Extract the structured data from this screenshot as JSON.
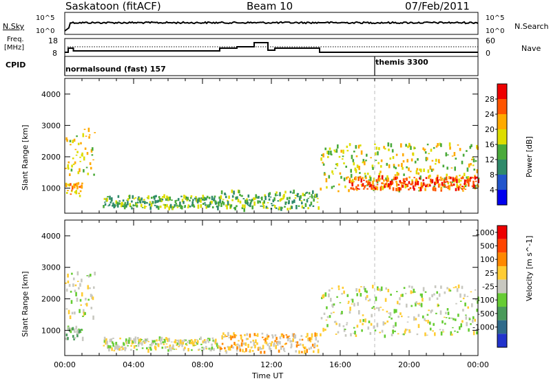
{
  "header": {
    "site": "Saskatoon (fitACF)",
    "beam": "Beam 10",
    "date": "07/Feb/2011"
  },
  "noise_panel": {
    "left_label": "N.Sky",
    "right_label": "N.Search",
    "left_ticks": [
      "10^5",
      "10^0"
    ],
    "right_ticks": [
      "10^5",
      "10^0"
    ]
  },
  "freq_panel": {
    "left_label_1": "Freq.",
    "left_label_2": "[MHz]",
    "right_label": "Nave",
    "left_ticks": [
      "18",
      "8"
    ],
    "right_ticks": [
      "60",
      "0"
    ]
  },
  "cpid_panel": {
    "label": "CPID",
    "modes": [
      {
        "name": "normalsound (fast) 157",
        "start_hour": 0
      },
      {
        "name": "themis 3300",
        "start_hour": 18
      }
    ]
  },
  "chart_data": [
    {
      "type": "heatmap",
      "quantity": "Power",
      "ylabel": "Slant Range [km]",
      "xlabel": "Time UT",
      "ylim": [
        200,
        4500
      ],
      "xlim_hours": [
        0,
        24
      ],
      "yticks": [
        "1000",
        "2000",
        "3000",
        "4000"
      ],
      "colorbar_label": "Power [dB]",
      "colorbar_ticks": [
        "4",
        "8",
        "12",
        "16",
        "20",
        "24",
        "28"
      ],
      "colors": [
        "#0000ee",
        "#2255cc",
        "#2f8a6a",
        "#4aaa3a",
        "#dddd00",
        "#ffaa00",
        "#ff5500",
        "#ee0000"
      ],
      "regions": [
        {
          "t0": 0.0,
          "t1": 1.7,
          "r0": 1400,
          "r1": 2900,
          "level": 4
        },
        {
          "t0": 0.0,
          "t1": 1.0,
          "r0": 750,
          "r1": 1150,
          "level": 5
        },
        {
          "t0": 2.2,
          "t1": 9.0,
          "r0": 350,
          "r1": 750,
          "level": 3
        },
        {
          "t0": 9.0,
          "t1": 14.7,
          "r0": 300,
          "r1": 900,
          "level": 3
        },
        {
          "t0": 14.8,
          "t1": 24.0,
          "r0": 900,
          "r1": 2400,
          "level": 4
        },
        {
          "t0": 16.5,
          "t1": 24.0,
          "r0": 950,
          "r1": 1350,
          "level": 6
        }
      ]
    },
    {
      "type": "heatmap",
      "quantity": "Velocity",
      "ylabel": "Slant Range [km]",
      "xlabel": "Time UT",
      "ylim": [
        200,
        4500
      ],
      "xlim_hours": [
        0,
        24
      ],
      "yticks": [
        "1000",
        "2000",
        "3000",
        "4000"
      ],
      "colorbar_label": "Velocity [m s^-1]",
      "colorbar_ticks": [
        "1000",
        "500",
        "100",
        "25",
        "-25",
        "-100",
        "-500",
        "-1000"
      ],
      "colors": [
        "#2233cc",
        "#2f6a8a",
        "#4a9a5a",
        "#66cc33",
        "#c8c8c0",
        "#ffcc33",
        "#ff8800",
        "#ff4400",
        "#ee0000"
      ],
      "regions": [
        {
          "t0": 0.0,
          "t1": 1.7,
          "r0": 1400,
          "r1": 2900,
          "level": 4
        },
        {
          "t0": 0.0,
          "t1": 1.0,
          "r0": 700,
          "r1": 1150,
          "level": 3
        },
        {
          "t0": 2.2,
          "t1": 9.0,
          "r0": 350,
          "r1": 750,
          "level": 4
        },
        {
          "t0": 9.0,
          "t1": 14.7,
          "r0": 300,
          "r1": 900,
          "level": 5
        },
        {
          "t0": 14.8,
          "t1": 24.0,
          "r0": 800,
          "r1": 2400,
          "level": 4
        }
      ]
    }
  ],
  "x_ticks": [
    "00:00",
    "04:00",
    "08:00",
    "12:00",
    "16:00",
    "20:00",
    "00:00"
  ],
  "x_axis_label": "Time UT"
}
